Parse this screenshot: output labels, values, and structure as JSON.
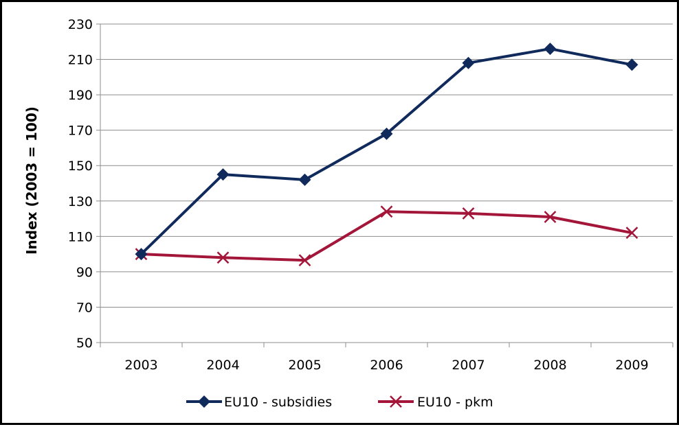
{
  "chart_data": {
    "type": "line",
    "title": "",
    "xlabel": "",
    "ylabel": "Index (2003 = 100)",
    "categories": [
      "2003",
      "2004",
      "2005",
      "2006",
      "2007",
      "2008",
      "2009"
    ],
    "ylim": [
      50,
      230
    ],
    "yticks": [
      50,
      70,
      90,
      110,
      130,
      150,
      170,
      190,
      210,
      230
    ],
    "grid": "horizontal",
    "legend_position": "bottom",
    "series": [
      {
        "name": "EU10 - subsidies",
        "values": [
          100,
          145,
          142,
          168,
          208,
          216,
          207
        ],
        "color": "#102A5C",
        "marker": "diamond"
      },
      {
        "name": "EU10 - pkm",
        "values": [
          100,
          98,
          96.5,
          124,
          123,
          121,
          112
        ],
        "color": "#A3163A",
        "marker": "x"
      }
    ]
  }
}
